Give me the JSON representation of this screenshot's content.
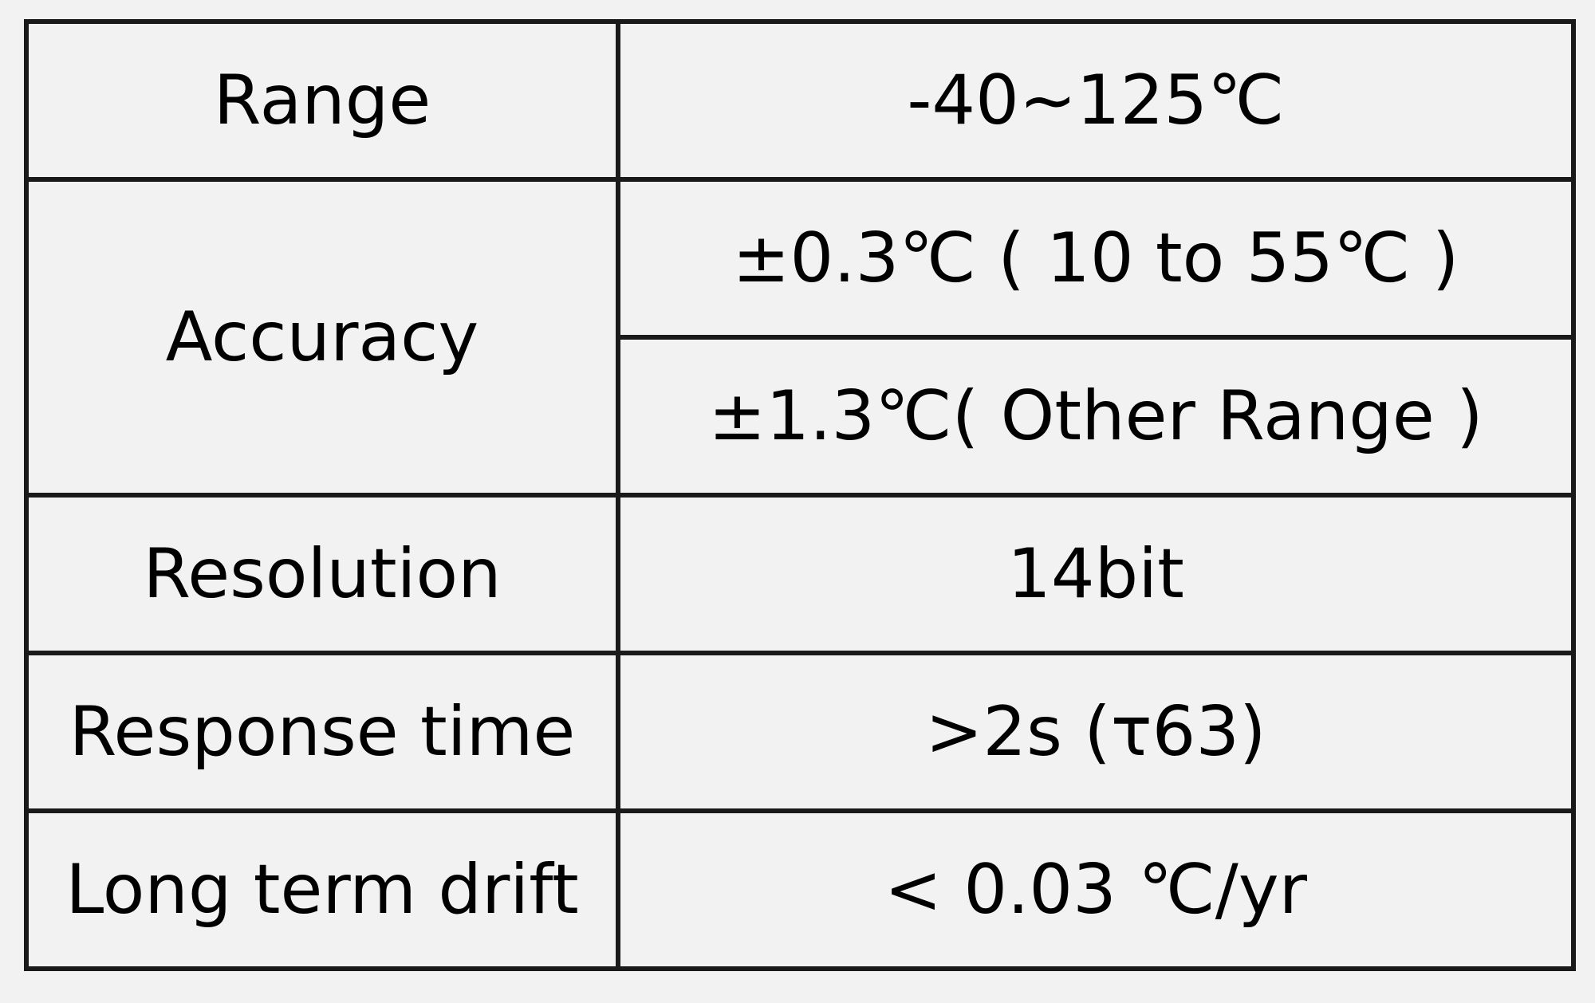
{
  "table": {
    "rows": [
      {
        "label": "Range",
        "values": [
          "-40~125℃"
        ]
      },
      {
        "label": "Accuracy",
        "values": [
          "±0.3℃ ( 10 to 55℃ )",
          "±1.3℃( Other Range )"
        ]
      },
      {
        "label": "Resolution",
        "values": [
          "14bit"
        ]
      },
      {
        "label": "Response time",
        "values": [
          ">2s (τ63)"
        ]
      },
      {
        "label": "Long term drift",
        "values": [
          "< 0.03 ℃/yr"
        ]
      }
    ]
  },
  "colors": {
    "background": "#f2f2f2",
    "border": "#1a1a1a",
    "text": "#000000"
  }
}
